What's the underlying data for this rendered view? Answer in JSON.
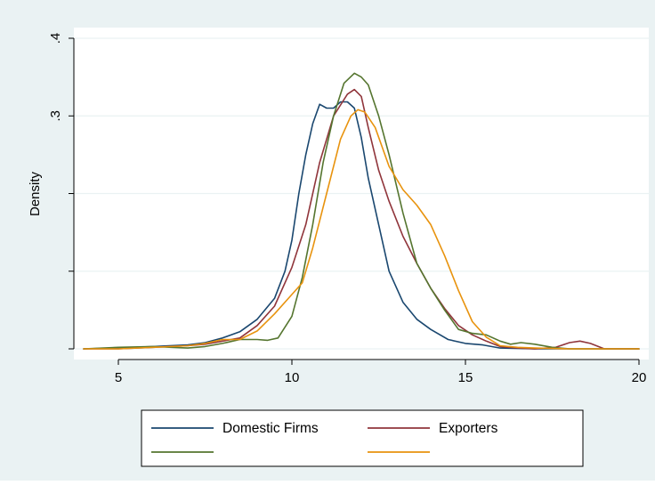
{
  "chart_data": {
    "type": "line",
    "ylabel": "Density",
    "xlim": [
      4,
      20
    ],
    "ylim": [
      0,
      0.4
    ],
    "x_ticks": [
      {
        "value": 5,
        "label": "5"
      },
      {
        "value": 10,
        "label": "10"
      },
      {
        "value": 15,
        "label": "15"
      },
      {
        "value": 20,
        "label": "20"
      }
    ],
    "y_ticks": [
      {
        "value": 0,
        "label": ""
      },
      {
        "value": 0.1,
        "label": ""
      },
      {
        "value": 0.2,
        "label": ""
      },
      {
        "value": 0.3,
        "label": ".3"
      },
      {
        "value": 0.4,
        "label": ".4"
      }
    ],
    "grid": true,
    "legend_position": "bottom",
    "series": [
      {
        "name": "Domestic Firms",
        "color": "#1a476f",
        "points": [
          [
            4,
            0
          ],
          [
            5,
            0.001
          ],
          [
            6,
            0.003
          ],
          [
            7,
            0.005
          ],
          [
            7.5,
            0.008
          ],
          [
            8,
            0.014
          ],
          [
            8.5,
            0.022
          ],
          [
            9,
            0.038
          ],
          [
            9.5,
            0.065
          ],
          [
            9.8,
            0.1
          ],
          [
            10,
            0.14
          ],
          [
            10.2,
            0.2
          ],
          [
            10.4,
            0.25
          ],
          [
            10.6,
            0.29
          ],
          [
            10.8,
            0.315
          ],
          [
            11,
            0.31
          ],
          [
            11.2,
            0.31
          ],
          [
            11.4,
            0.318
          ],
          [
            11.6,
            0.318
          ],
          [
            11.8,
            0.31
          ],
          [
            12,
            0.272
          ],
          [
            12.2,
            0.22
          ],
          [
            12.5,
            0.16
          ],
          [
            12.8,
            0.1
          ],
          [
            13.2,
            0.06
          ],
          [
            13.6,
            0.038
          ],
          [
            14,
            0.025
          ],
          [
            14.5,
            0.012
          ],
          [
            15,
            0.007
          ],
          [
            15.5,
            0.005
          ],
          [
            16,
            0.001
          ],
          [
            17,
            0
          ],
          [
            18,
            0
          ],
          [
            19,
            0
          ],
          [
            20,
            0
          ]
        ]
      },
      {
        "name": "Exporters",
        "color": "#90353b",
        "points": [
          [
            4,
            0
          ],
          [
            5,
            0
          ],
          [
            6,
            0.002
          ],
          [
            7,
            0.004
          ],
          [
            7.5,
            0.006
          ],
          [
            8,
            0.01
          ],
          [
            8.5,
            0.014
          ],
          [
            9,
            0.03
          ],
          [
            9.5,
            0.055
          ],
          [
            10,
            0.105
          ],
          [
            10.4,
            0.16
          ],
          [
            10.8,
            0.24
          ],
          [
            11.2,
            0.3
          ],
          [
            11.6,
            0.328
          ],
          [
            11.8,
            0.334
          ],
          [
            12,
            0.325
          ],
          [
            12.2,
            0.285
          ],
          [
            12.5,
            0.23
          ],
          [
            12.8,
            0.19
          ],
          [
            13.2,
            0.145
          ],
          [
            13.6,
            0.11
          ],
          [
            14,
            0.078
          ],
          [
            14.4,
            0.052
          ],
          [
            14.8,
            0.03
          ],
          [
            15.2,
            0.018
          ],
          [
            15.6,
            0.01
          ],
          [
            16,
            0.003
          ],
          [
            16.5,
            0.001
          ],
          [
            17,
            0
          ],
          [
            17.6,
            0.002
          ],
          [
            18,
            0.008
          ],
          [
            18.3,
            0.01
          ],
          [
            18.6,
            0.007
          ],
          [
            19,
            0
          ],
          [
            20,
            0
          ]
        ]
      },
      {
        "name": "",
        "color": "#55752f",
        "points": [
          [
            4,
            0
          ],
          [
            5,
            0.002
          ],
          [
            6,
            0.003
          ],
          [
            7,
            0.001
          ],
          [
            7.5,
            0.003
          ],
          [
            8,
            0.007
          ],
          [
            8.5,
            0.012
          ],
          [
            9,
            0.012
          ],
          [
            9.3,
            0.011
          ],
          [
            9.6,
            0.014
          ],
          [
            10,
            0.042
          ],
          [
            10.3,
            0.092
          ],
          [
            10.6,
            0.16
          ],
          [
            10.9,
            0.24
          ],
          [
            11.2,
            0.3
          ],
          [
            11.5,
            0.342
          ],
          [
            11.8,
            0.355
          ],
          [
            12,
            0.35
          ],
          [
            12.2,
            0.34
          ],
          [
            12.5,
            0.3
          ],
          [
            12.8,
            0.25
          ],
          [
            13.2,
            0.175
          ],
          [
            13.6,
            0.11
          ],
          [
            14,
            0.078
          ],
          [
            14.4,
            0.05
          ],
          [
            14.8,
            0.025
          ],
          [
            15.2,
            0.02
          ],
          [
            15.6,
            0.018
          ],
          [
            16,
            0.01
          ],
          [
            16.3,
            0.006
          ],
          [
            16.6,
            0.008
          ],
          [
            17,
            0.006
          ],
          [
            17.5,
            0.002
          ],
          [
            18,
            0
          ],
          [
            19,
            0
          ],
          [
            20,
            0
          ]
        ]
      },
      {
        "name": "",
        "color": "#e8930e",
        "points": [
          [
            4,
            0
          ],
          [
            5,
            0
          ],
          [
            6,
            0.002
          ],
          [
            7,
            0.004
          ],
          [
            7.5,
            0.007
          ],
          [
            8,
            0.012
          ],
          [
            8.5,
            0.012
          ],
          [
            9,
            0.023
          ],
          [
            9.5,
            0.045
          ],
          [
            10,
            0.07
          ],
          [
            10.3,
            0.085
          ],
          [
            10.6,
            0.13
          ],
          [
            11,
            0.2
          ],
          [
            11.4,
            0.27
          ],
          [
            11.7,
            0.3
          ],
          [
            11.9,
            0.308
          ],
          [
            12.1,
            0.305
          ],
          [
            12.4,
            0.285
          ],
          [
            12.8,
            0.235
          ],
          [
            13.2,
            0.205
          ],
          [
            13.6,
            0.185
          ],
          [
            14,
            0.16
          ],
          [
            14.4,
            0.12
          ],
          [
            14.8,
            0.075
          ],
          [
            15.2,
            0.035
          ],
          [
            15.6,
            0.015
          ],
          [
            16,
            0.004
          ],
          [
            16.5,
            0.002
          ],
          [
            17,
            0.001
          ],
          [
            18,
            0
          ],
          [
            19,
            0
          ],
          [
            20,
            0
          ]
        ]
      }
    ]
  }
}
